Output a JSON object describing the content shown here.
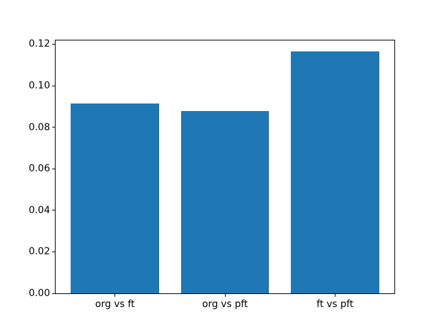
{
  "chart_data": {
    "type": "bar",
    "title": "",
    "xlabel": "",
    "ylabel": "",
    "categories": [
      "org vs ft",
      "org vs pft",
      "ft vs pft"
    ],
    "values": [
      0.0914,
      0.0877,
      0.1164
    ],
    "yticks": [
      0.0,
      0.02,
      0.04,
      0.06,
      0.08,
      0.1,
      0.12
    ],
    "ytick_labels": [
      "0.00",
      "0.02",
      "0.04",
      "0.06",
      "0.08",
      "0.10",
      "0.12"
    ],
    "ylim": [
      0,
      0.1218
    ],
    "xlim": [
      -0.54,
      2.54
    ],
    "bar_positions": [
      0,
      1,
      2
    ],
    "bar_width_units": 0.8,
    "bar_color": "#1f77b4",
    "spine_color": "#000000",
    "text_color": "#000000",
    "background_color": "#ffffff",
    "grid": false,
    "legend": "none"
  }
}
